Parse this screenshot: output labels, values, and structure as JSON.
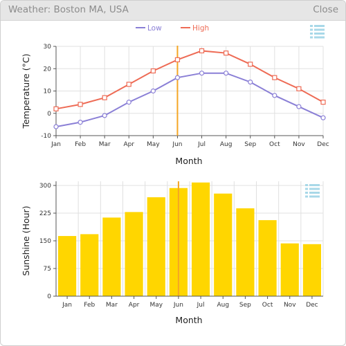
{
  "window": {
    "title": "Weather: Boston MA, USA",
    "close_label": "Close"
  },
  "colors": {
    "low": "#8a7fd6",
    "high": "#ee6b55",
    "sunshine": "#ffd600",
    "cursor": "#f5a623",
    "menu_icon": "#a8d8e8"
  },
  "icons": {
    "chart_menu": "list-menu-icon"
  },
  "cursor_month": "Jun",
  "chart_data": [
    {
      "type": "line",
      "categories": [
        "Jan",
        "Feb",
        "Mar",
        "Apr",
        "May",
        "Jun",
        "Jul",
        "Aug",
        "Sep",
        "Oct",
        "Nov",
        "Dec"
      ],
      "series": [
        {
          "name": "Low",
          "values": [
            -6,
            -4,
            -1,
            5,
            10,
            16,
            18,
            18,
            14,
            8,
            3,
            -2
          ]
        },
        {
          "name": "High",
          "values": [
            2,
            4,
            7,
            13,
            19,
            24,
            28,
            27,
            22,
            16,
            11,
            5
          ]
        }
      ],
      "xlabel": "Month",
      "ylabel": "Temperature (°C)",
      "ylim": [
        -10,
        30
      ],
      "yticks": [
        -10,
        0,
        10,
        20,
        30
      ],
      "grid": true,
      "legend": "top-center"
    },
    {
      "type": "bar",
      "categories": [
        "Jan",
        "Feb",
        "Mar",
        "Apr",
        "May",
        "Jun",
        "Jul",
        "Aug",
        "Sep",
        "Oct",
        "Nov",
        "Dec"
      ],
      "values": [
        163,
        168,
        213,
        228,
        268,
        293,
        308,
        278,
        238,
        206,
        143,
        141
      ],
      "xlabel": "Month",
      "ylabel": "Sunshine (Hour)",
      "ylim": [
        0,
        300
      ],
      "yticks": [
        0,
        75,
        150,
        225,
        300
      ],
      "grid": true
    }
  ]
}
